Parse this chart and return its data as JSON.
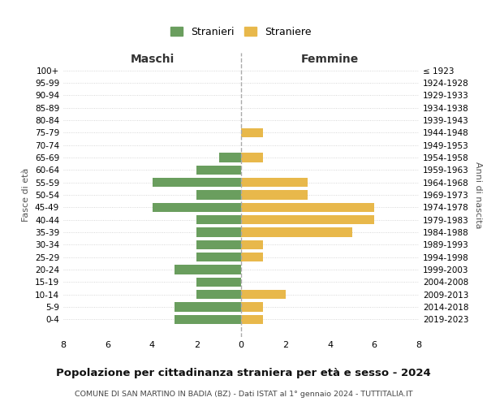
{
  "age_groups": [
    "100+",
    "95-99",
    "90-94",
    "85-89",
    "80-84",
    "75-79",
    "70-74",
    "65-69",
    "60-64",
    "55-59",
    "50-54",
    "45-49",
    "40-44",
    "35-39",
    "30-34",
    "25-29",
    "20-24",
    "15-19",
    "10-14",
    "5-9",
    "0-4"
  ],
  "birth_years": [
    "≤ 1923",
    "1924-1928",
    "1929-1933",
    "1934-1938",
    "1939-1943",
    "1944-1948",
    "1949-1953",
    "1954-1958",
    "1959-1963",
    "1964-1968",
    "1969-1973",
    "1974-1978",
    "1979-1983",
    "1984-1988",
    "1989-1993",
    "1994-1998",
    "1999-2003",
    "2004-2008",
    "2009-2013",
    "2014-2018",
    "2019-2023"
  ],
  "maschi": [
    0,
    0,
    0,
    0,
    0,
    0,
    0,
    1,
    2,
    4,
    2,
    4,
    2,
    2,
    2,
    2,
    3,
    2,
    2,
    3,
    3
  ],
  "femmine": [
    0,
    0,
    0,
    0,
    0,
    1,
    0,
    1,
    0,
    3,
    3,
    6,
    6,
    5,
    1,
    1,
    0,
    0,
    2,
    1,
    1
  ],
  "maschi_color": "#6a9e5e",
  "femmine_color": "#e8b84b",
  "title": "Popolazione per cittadinanza straniera per età e sesso - 2024",
  "subtitle": "COMUNE DI SAN MARTINO IN BADIA (BZ) - Dati ISTAT al 1° gennaio 2024 - TUTTITALIA.IT",
  "xlabel_left": "Maschi",
  "xlabel_right": "Femmine",
  "ylabel_left": "Fasce di età",
  "ylabel_right": "Anni di nascita",
  "legend_stranieri": "Stranieri",
  "legend_straniere": "Straniere",
  "xlim": 8,
  "background_color": "#ffffff",
  "grid_color": "#cccccc"
}
